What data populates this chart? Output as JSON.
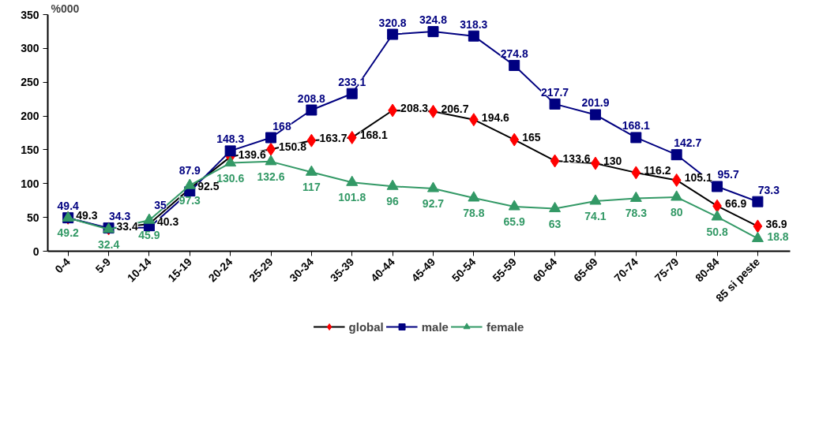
{
  "chart_data": {
    "type": "line",
    "ylabel": "%000",
    "categories": [
      "0-4",
      "5-9",
      "10-14",
      "15-19",
      "20-24",
      "25-29",
      "30-34",
      "35-39",
      "40-44",
      "45-49",
      "50-54",
      "55-59",
      "60-64",
      "65-69",
      "70-74",
      "75-79",
      "80-84",
      "85 si peste"
    ],
    "series": [
      {
        "name": "global",
        "color": "#000000",
        "colors": [
          "#ff0000",
          "#ff0000",
          "#ff0000",
          "#ff0000",
          "#ff0000",
          "#ff0000",
          "#ff0000",
          "#ff0000",
          "#ff0000",
          "#ff0000",
          "#ff0000",
          "#ff0000",
          "#ff0000",
          "#ff0000",
          "#ff0000",
          "#ff0000",
          "#ff0000",
          "#ff0000"
        ],
        "marker": "diamond",
        "values": [
          49.3,
          33.4,
          40.3,
          92.5,
          139.6,
          150.8,
          163.7,
          168.1,
          208.3,
          206.7,
          194.6,
          165,
          133.6,
          130,
          116.2,
          105.1,
          66.9,
          36.9
        ]
      },
      {
        "name": "male",
        "color": "#000080",
        "marker": "square",
        "values": [
          49.4,
          34.3,
          35,
          87.9,
          148.3,
          168,
          208.8,
          233.1,
          320.8,
          324.8,
          318.3,
          274.8,
          217.7,
          201.9,
          168.1,
          142.7,
          95.7,
          73.3
        ]
      },
      {
        "name": "female",
        "color": "#339966",
        "marker": "triangle",
        "values": [
          49.2,
          32.4,
          45.9,
          97.3,
          130.6,
          132.6,
          117,
          101.8,
          96,
          92.7,
          78.8,
          65.9,
          63,
          74.1,
          78.3,
          80,
          50.8,
          18.8
        ]
      }
    ],
    "ylim": [
      0,
      350
    ],
    "yticks": [
      0,
      50,
      100,
      150,
      200,
      250,
      300,
      350
    ],
    "data_labels": true,
    "grid": false,
    "legend": "bottom"
  }
}
